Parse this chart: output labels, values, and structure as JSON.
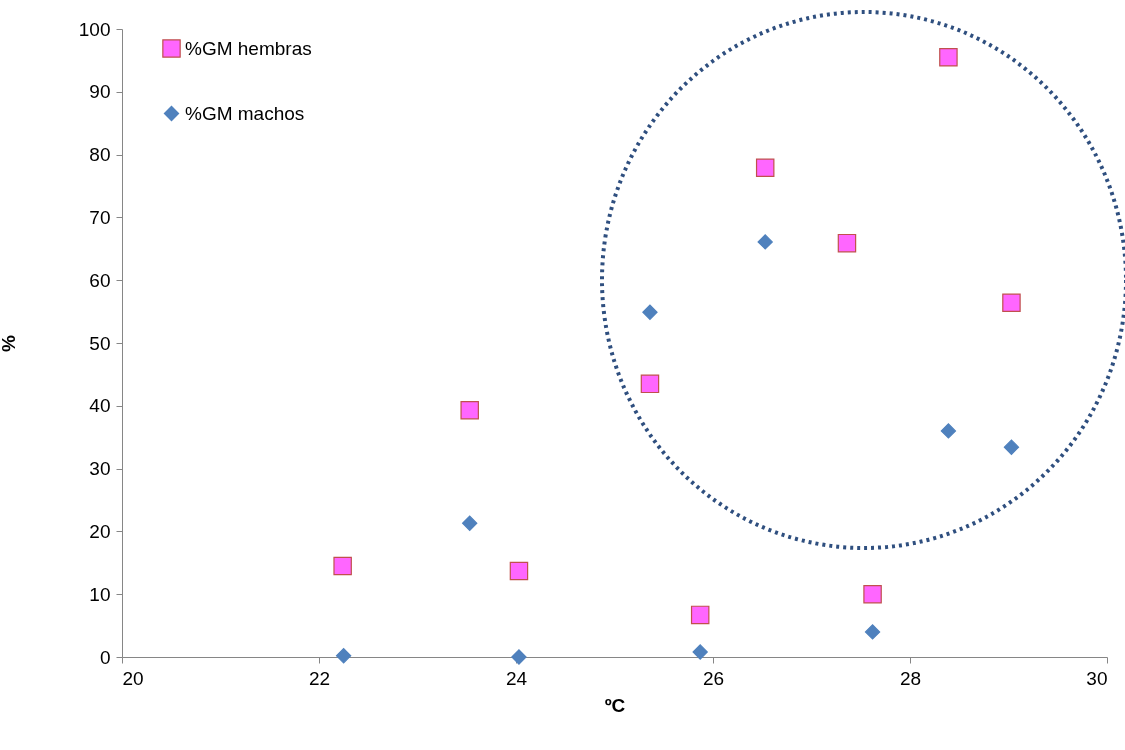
{
  "chart_data": {
    "type": "scatter",
    "xlabel": "ºC",
    "ylabel": "%",
    "xlim": [
      20,
      30
    ],
    "xticks": [
      20,
      22,
      24,
      26,
      28,
      30
    ],
    "ylim": [
      0,
      100
    ],
    "yticks": [
      0,
      10,
      20,
      30,
      40,
      50,
      60,
      70,
      80,
      90,
      100
    ],
    "grid": false,
    "legend": "top left",
    "series": [
      {
        "name": "%GM hembras",
        "color": "#ff66ff",
        "marker": "square",
        "x": [
          22.24,
          23.53,
          24.03,
          25.36,
          25.87,
          26.53,
          27.36,
          27.62,
          28.39,
          29.03
        ],
        "values": [
          14.5,
          39.3,
          13.7,
          43.5,
          6.7,
          77.9,
          65.9,
          10.0,
          95.5,
          56.4
        ]
      },
      {
        "name": "%GM machos",
        "color": "#4f81bd",
        "marker": "diamond",
        "x": [
          22.25,
          23.53,
          24.03,
          25.36,
          25.87,
          26.53,
          27.62,
          28.39,
          29.03
        ],
        "values": [
          0.2,
          21.3,
          0,
          54.9,
          0.8,
          66.1,
          4.0,
          36.0,
          33.4
        ]
      }
    ]
  }
}
